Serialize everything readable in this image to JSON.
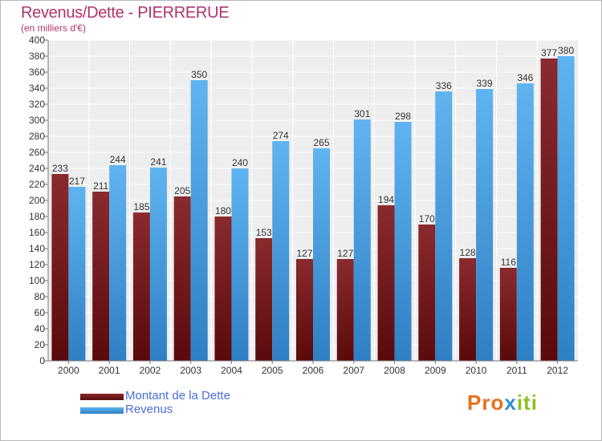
{
  "chart_data": {
    "type": "bar",
    "title": "Revenus/Dette - PIERRERUE",
    "subtitle": "(en milliers d'€)",
    "xlabel": "",
    "ylabel": "",
    "ylim": [
      0,
      400
    ],
    "ytick_step": 20,
    "grid": true,
    "categories": [
      "2000",
      "2001",
      "2002",
      "2003",
      "2004",
      "2005",
      "2006",
      "2007",
      "2008",
      "2009",
      "2010",
      "2011",
      "2012"
    ],
    "series": [
      {
        "name": "Montant de la Dette",
        "color": "#7a1a1e",
        "values": [
          233,
          211,
          185,
          205,
          180,
          153,
          127,
          127,
          194,
          170,
          128,
          116,
          377
        ]
      },
      {
        "name": "Revenus",
        "color": "#3f9fe6",
        "values": [
          217,
          244,
          241,
          350,
          240,
          274,
          265,
          301,
          298,
          336,
          339,
          346,
          380
        ]
      }
    ],
    "legend_position": "bottom-left"
  },
  "logo": {
    "part1": "Pro",
    "part2": "x",
    "part3": "iti"
  }
}
